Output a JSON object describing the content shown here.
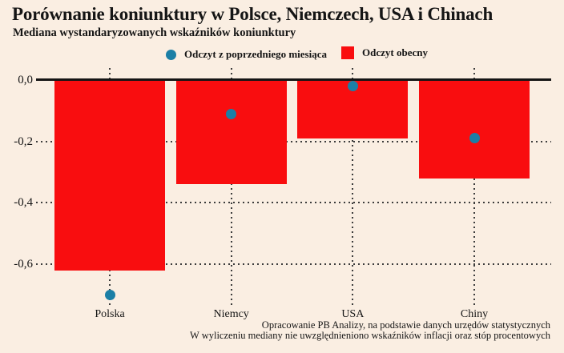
{
  "header": {
    "title": "Porównanie koniunktury w Polsce, Niemczech, USA i Chinach",
    "subtitle": "Mediana wystandaryzowanych wskaźników koniunktury"
  },
  "legend": {
    "previous_label": "Odczyt z poprzedniego miesiąca",
    "current_label": "Odczyt obecny"
  },
  "chart_data": {
    "type": "bar",
    "categories": [
      "Polska",
      "Niemcy",
      "USA",
      "Chiny"
    ],
    "series": [
      {
        "name": "Odczyt obecny",
        "mark": "bar",
        "values": [
          -0.62,
          -0.34,
          -0.19,
          -0.32
        ],
        "color": "#f90d0f"
      },
      {
        "name": "Odczyt z poprzedniego miesiąca",
        "mark": "point",
        "values": [
          -0.7,
          -0.11,
          -0.02,
          -0.19
        ],
        "color": "#1b7fa6"
      }
    ],
    "yticks": {
      "labels": [
        "0,0",
        "-0,2",
        "-0,4",
        "-0,6"
      ],
      "values": [
        0,
        -0.2,
        -0.4,
        -0.6
      ]
    },
    "ylim": [
      -0.74,
      0
    ],
    "grid": "dotted horizontal gridlines at y ticks and dotted vertical guide per category",
    "legend_position": "top",
    "baseline": "solid black line at 0"
  },
  "footer": {
    "line1": "Opracowanie PB Analizy, na podstawie danych urzędów statystycznych",
    "line2": "W wyliczeniu mediany nie uwzględnieniono wskaźników inflacji oraz stóp procentowych"
  },
  "colors": {
    "background": "#faeee2",
    "bar": "#f90d0f",
    "dot": "#1b7fa6",
    "axis": "#151515",
    "grid": "#3c3c3c",
    "text": "#151515"
  }
}
